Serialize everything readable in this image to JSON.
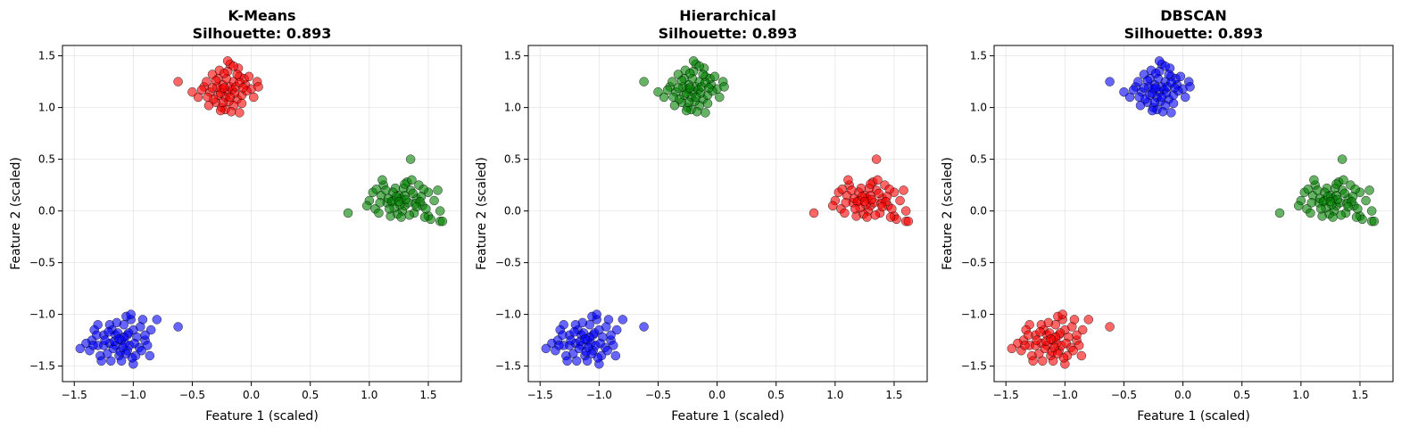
{
  "figure": {
    "panels": [
      {
        "title": "K-Means",
        "subtitle": "Silhouette: 0.893",
        "xlabel": "Feature 1 (scaled)",
        "ylabel": "Feature 2 (scaled)"
      },
      {
        "title": "Hierarchical",
        "subtitle": "Silhouette: 0.893",
        "xlabel": "Feature 1 (scaled)",
        "ylabel": "Feature 2 (scaled)"
      },
      {
        "title": "DBSCAN",
        "subtitle": "Silhouette: 0.893",
        "xlabel": "Feature 1 (scaled)",
        "ylabel": "Feature 2 (scaled)"
      }
    ]
  },
  "chart_data": [
    {
      "type": "scatter",
      "title": "K-Means",
      "subtitle": "Silhouette: 0.893",
      "xlabel": "Feature 1 (scaled)",
      "ylabel": "Feature 2 (scaled)",
      "xlim": [
        -1.6,
        1.78
      ],
      "ylim": [
        -1.65,
        1.6
      ],
      "xticks": [
        -1.5,
        -1.0,
        -0.5,
        0.0,
        0.5,
        1.0,
        1.5
      ],
      "yticks": [
        -1.5,
        -1.0,
        -0.5,
        0.0,
        0.5,
        1.0,
        1.5
      ],
      "xtick_labels": [
        "−1.5",
        "−1.0",
        "−0.5",
        "0.0",
        "0.5",
        "1.0",
        "1.5"
      ],
      "ytick_labels": [
        "−1.5",
        "−1.0",
        "−0.5",
        "0.0",
        "0.5",
        "1.0",
        "1.5"
      ],
      "grid": true,
      "series_colors": [
        "#ff0000",
        "#008000",
        "#0000ff"
      ]
    },
    {
      "type": "scatter",
      "title": "Hierarchical",
      "subtitle": "Silhouette: 0.893",
      "xlabel": "Feature 1 (scaled)",
      "ylabel": "Feature 2 (scaled)",
      "xlim": [
        -1.6,
        1.78
      ],
      "ylim": [
        -1.65,
        1.6
      ],
      "xticks": [
        -1.5,
        -1.0,
        -0.5,
        0.0,
        0.5,
        1.0,
        1.5
      ],
      "yticks": [
        -1.5,
        -1.0,
        -0.5,
        0.0,
        0.5,
        1.0,
        1.5
      ],
      "xtick_labels": [
        "−1.5",
        "−1.0",
        "−0.5",
        "0.0",
        "0.5",
        "1.0",
        "1.5"
      ],
      "ytick_labels": [
        "−1.5",
        "−1.0",
        "−0.5",
        "0.0",
        "0.5",
        "1.0",
        "1.5"
      ],
      "grid": true,
      "series_colors": [
        "#008000",
        "#ff0000",
        "#0000ff"
      ]
    },
    {
      "type": "scatter",
      "title": "DBSCAN",
      "subtitle": "Silhouette: 0.893",
      "xlabel": "Feature 1 (scaled)",
      "ylabel": "Feature 2 (scaled)",
      "xlim": [
        -1.6,
        1.78
      ],
      "ylim": [
        -1.65,
        1.6
      ],
      "xticks": [
        -1.5,
        -1.0,
        -0.5,
        0.0,
        0.5,
        1.0,
        1.5
      ],
      "yticks": [
        -1.5,
        -1.0,
        -0.5,
        0.0,
        0.5,
        1.0,
        1.5
      ],
      "xtick_labels": [
        "−1.5",
        "−1.0",
        "−0.5",
        "0.0",
        "0.5",
        "1.0",
        "1.5"
      ],
      "ytick_labels": [
        "−1.5",
        "−1.0",
        "−0.5",
        "0.0",
        "0.5",
        "1.0",
        "1.5"
      ],
      "grid": true,
      "series_colors": [
        "#0000ff",
        "#008000",
        "#ff0000"
      ]
    }
  ],
  "points": {
    "cluster_a": [
      [
        -0.2,
        1.15
      ],
      [
        -0.18,
        1.2
      ],
      [
        -0.22,
        1.1
      ],
      [
        -0.15,
        1.25
      ],
      [
        -0.25,
        1.18
      ],
      [
        -0.3,
        1.05
      ],
      [
        -0.1,
        1.3
      ],
      [
        -0.05,
        1.22
      ],
      [
        -0.28,
        1.28
      ],
      [
        -0.12,
        1.08
      ],
      [
        -0.35,
        1.15
      ],
      [
        -0.08,
        1.12
      ],
      [
        -0.2,
        1.35
      ],
      [
        -0.25,
        1.0
      ],
      [
        -0.15,
        1.02
      ],
      [
        -0.4,
        1.2
      ],
      [
        0.0,
        1.18
      ],
      [
        0.05,
        1.25
      ],
      [
        -0.33,
        1.32
      ],
      [
        -0.18,
        1.42
      ],
      [
        -0.22,
        0.98
      ],
      [
        -0.1,
        0.95
      ],
      [
        -0.45,
        1.1
      ],
      [
        -0.38,
        1.25
      ],
      [
        0.02,
        1.1
      ],
      [
        -0.28,
        1.12
      ],
      [
        -0.16,
        1.17
      ],
      [
        -0.24,
        1.22
      ],
      [
        -0.06,
        1.28
      ],
      [
        -0.32,
        1.08
      ],
      [
        -0.21,
        1.28
      ],
      [
        -0.14,
        1.14
      ],
      [
        -0.27,
        1.36
      ],
      [
        -0.11,
        1.38
      ],
      [
        -0.36,
        1.02
      ],
      [
        -0.19,
        1.06
      ],
      [
        -0.26,
        1.14
      ],
      [
        -0.13,
        1.2
      ],
      [
        -0.08,
        1.04
      ],
      [
        -0.29,
        1.2
      ],
      [
        -0.17,
        0.96
      ],
      [
        -0.23,
        1.33
      ],
      [
        -0.04,
        1.16
      ],
      [
        -0.42,
        1.17
      ],
      [
        0.06,
        1.2
      ],
      [
        -0.2,
        1.45
      ],
      [
        -0.15,
        1.4
      ],
      [
        -0.3,
        1.26
      ],
      [
        -0.02,
        1.3
      ],
      [
        -0.37,
        1.1
      ],
      [
        -0.24,
        1.05
      ],
      [
        -0.12,
        1.32
      ],
      [
        -0.5,
        1.15
      ],
      [
        -0.1,
        1.24
      ],
      [
        -0.23,
        1.19
      ],
      [
        -0.18,
        1.1
      ],
      [
        -0.33,
        1.19
      ],
      [
        -0.07,
        1.19
      ],
      [
        -0.26,
        0.97
      ],
      [
        -0.62,
        1.25
      ]
    ],
    "cluster_b": [
      [
        1.2,
        0.1
      ],
      [
        1.25,
        0.15
      ],
      [
        1.3,
        0.05
      ],
      [
        1.35,
        0.2
      ],
      [
        1.15,
        0.08
      ],
      [
        1.4,
        0.12
      ],
      [
        1.28,
        0.0
      ],
      [
        1.22,
        0.22
      ],
      [
        1.45,
        0.05
      ],
      [
        1.1,
        0.15
      ],
      [
        1.32,
        0.28
      ],
      [
        1.38,
        -0.02
      ],
      [
        1.18,
        -0.05
      ],
      [
        1.5,
        0.18
      ],
      [
        1.05,
        0.02
      ],
      [
        1.27,
        0.12
      ],
      [
        1.33,
        0.08
      ],
      [
        1.42,
        0.25
      ],
      [
        1.12,
        0.25
      ],
      [
        1.24,
        -0.03
      ],
      [
        1.55,
        0.1
      ],
      [
        1.6,
        0.0
      ],
      [
        1.6,
        -0.1
      ],
      [
        1.5,
        -0.05
      ],
      [
        1.0,
        0.1
      ],
      [
        1.08,
        -0.02
      ],
      [
        1.36,
        0.3
      ],
      [
        1.3,
        0.15
      ],
      [
        1.2,
        0.18
      ],
      [
        1.26,
        0.06
      ],
      [
        1.16,
        0.12
      ],
      [
        1.44,
        0.14
      ],
      [
        1.48,
        0.02
      ],
      [
        1.21,
        0.03
      ],
      [
        1.34,
        -0.04
      ],
      [
        1.29,
        0.22
      ],
      [
        1.39,
        0.07
      ],
      [
        1.14,
        0.2
      ],
      [
        1.03,
        0.18
      ],
      [
        0.82,
        -0.02
      ],
      [
        1.35,
        0.5
      ],
      [
        1.58,
        0.2
      ],
      [
        1.62,
        -0.1
      ],
      [
        1.52,
        -0.08
      ],
      [
        1.19,
        0.09
      ],
      [
        1.31,
        0.11
      ],
      [
        1.23,
        0.14
      ],
      [
        1.37,
        0.17
      ],
      [
        1.43,
        0.09
      ],
      [
        1.17,
        0.02
      ],
      [
        1.09,
        0.08
      ],
      [
        1.46,
        0.21
      ],
      [
        1.27,
        -0.06
      ],
      [
        1.4,
        0.04
      ],
      [
        0.98,
        0.05
      ],
      [
        1.11,
        0.3
      ],
      [
        1.47,
        -0.06
      ],
      [
        1.3,
        0.26
      ],
      [
        1.06,
        0.21
      ],
      [
        1.25,
        0.09
      ]
    ],
    "cluster_c": [
      [
        -1.1,
        -1.25
      ],
      [
        -1.05,
        -1.2
      ],
      [
        -1.15,
        -1.3
      ],
      [
        -1.0,
        -1.15
      ],
      [
        -1.2,
        -1.28
      ],
      [
        -0.95,
        -1.32
      ],
      [
        -1.08,
        -1.1
      ],
      [
        -1.12,
        -1.4
      ],
      [
        -1.25,
        -1.2
      ],
      [
        -0.9,
        -1.25
      ],
      [
        -1.02,
        -1.05
      ],
      [
        -1.18,
        -1.15
      ],
      [
        -1.3,
        -1.3
      ],
      [
        -0.98,
        -1.4
      ],
      [
        -1.05,
        -1.35
      ],
      [
        -1.22,
        -1.38
      ],
      [
        -1.35,
        -1.25
      ],
      [
        -0.85,
        -1.15
      ],
      [
        -1.4,
        -1.28
      ],
      [
        -1.45,
        -1.33
      ],
      [
        -1.3,
        -1.1
      ],
      [
        -0.92,
        -1.05
      ],
      [
        -0.8,
        -1.05
      ],
      [
        -1.0,
        -1.48
      ],
      [
        -1.1,
        -1.45
      ],
      [
        -1.15,
        -1.2
      ],
      [
        -1.07,
        -1.28
      ],
      [
        -1.13,
        -1.18
      ],
      [
        -1.03,
        -1.3
      ],
      [
        -1.17,
        -1.33
      ],
      [
        -0.97,
        -1.22
      ],
      [
        -1.25,
        -1.3
      ],
      [
        -1.06,
        -1.02
      ],
      [
        -1.2,
        -1.1
      ],
      [
        -0.88,
        -1.3
      ],
      [
        -1.28,
        -1.4
      ],
      [
        -1.33,
        -1.15
      ],
      [
        -0.94,
        -1.12
      ],
      [
        -1.11,
        -1.36
      ],
      [
        -1.04,
        -1.18
      ],
      [
        -0.62,
        -1.12
      ],
      [
        -1.37,
        -1.35
      ],
      [
        -0.86,
        -1.4
      ],
      [
        -1.02,
        -1.0
      ],
      [
        -1.19,
        -1.45
      ],
      [
        -1.24,
        -1.25
      ],
      [
        -0.99,
        -1.28
      ],
      [
        -1.14,
        -1.08
      ],
      [
        -1.08,
        -1.22
      ],
      [
        -1.16,
        -1.26
      ],
      [
        -0.93,
        -1.35
      ],
      [
        -1.31,
        -1.2
      ],
      [
        -1.27,
        -1.45
      ],
      [
        -1.01,
        -1.42
      ],
      [
        -0.9,
        -1.2
      ],
      [
        -1.21,
        -1.17
      ],
      [
        -1.09,
        -1.32
      ],
      [
        -1.12,
        -1.24
      ],
      [
        -1.34,
        -1.3
      ],
      [
        -1.06,
        -1.38
      ]
    ]
  }
}
